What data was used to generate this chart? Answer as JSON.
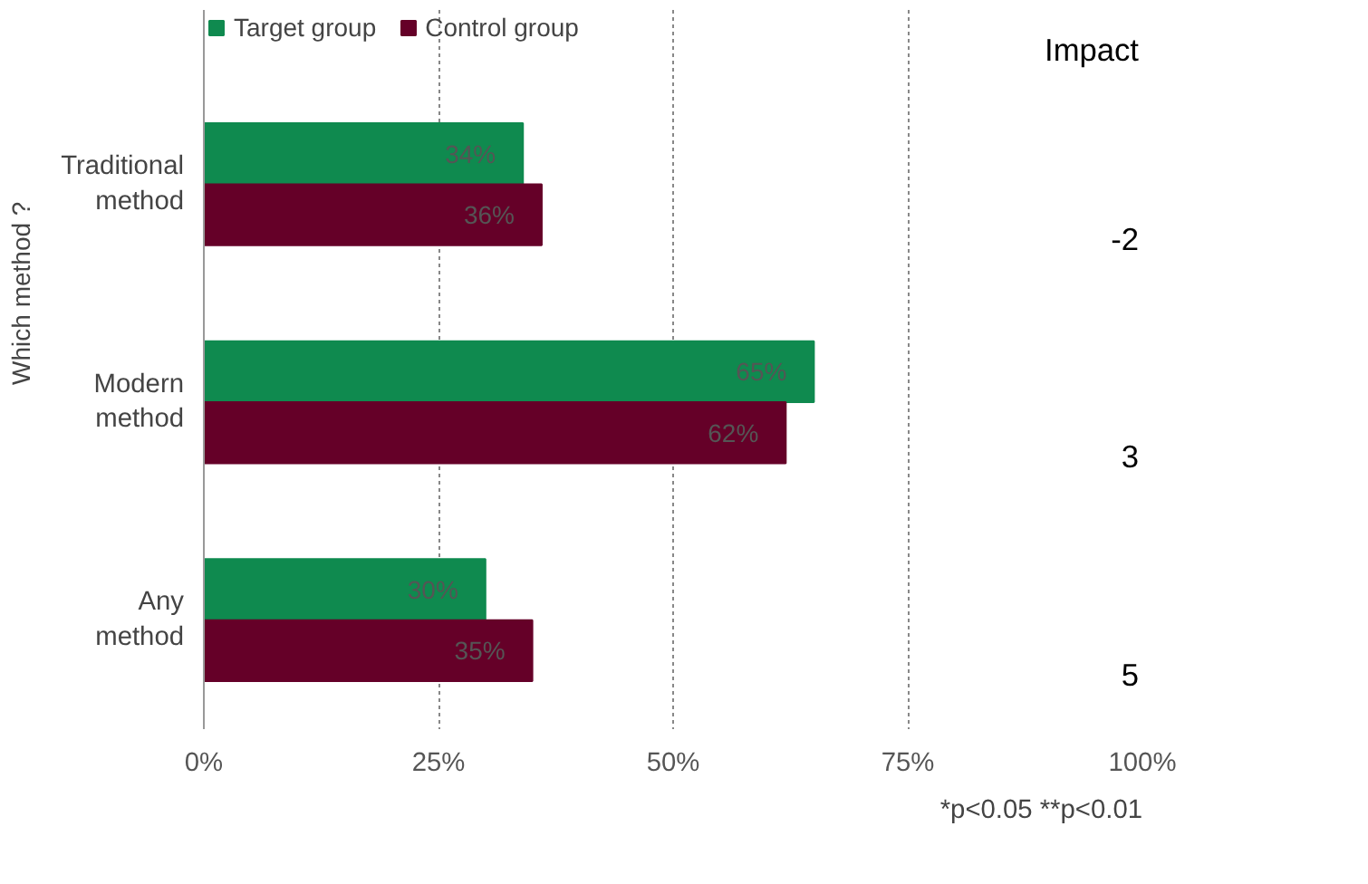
{
  "chart_data": {
    "type": "bar",
    "orientation": "horizontal",
    "categories": [
      "Traditional method",
      "Modern method",
      "Any method"
    ],
    "series": [
      {
        "name": "Target group",
        "color": "#0f8a4f",
        "values": [
          34,
          65,
          30
        ],
        "value_labels": [
          "34%",
          "65%",
          "30%"
        ]
      },
      {
        "name": "Control group",
        "color": "#650028",
        "values": [
          36,
          62,
          35
        ],
        "value_labels": [
          "36%",
          "62%",
          "35%"
        ]
      }
    ],
    "xlim": [
      0,
      100
    ],
    "xticks": [
      {
        "value": 0,
        "label": "0%"
      },
      {
        "value": 25,
        "label": "25%"
      },
      {
        "value": 50,
        "label": "50%"
      },
      {
        "value": 75,
        "label": "75%"
      },
      {
        "value": 100,
        "label": "100%"
      }
    ],
    "grid": "x",
    "legend": "top left",
    "annotations": [
      "Which method ?",
      "Impact",
      "-2",
      "3",
      "5",
      "*p<0.05 **p<0.01"
    ]
  }
}
